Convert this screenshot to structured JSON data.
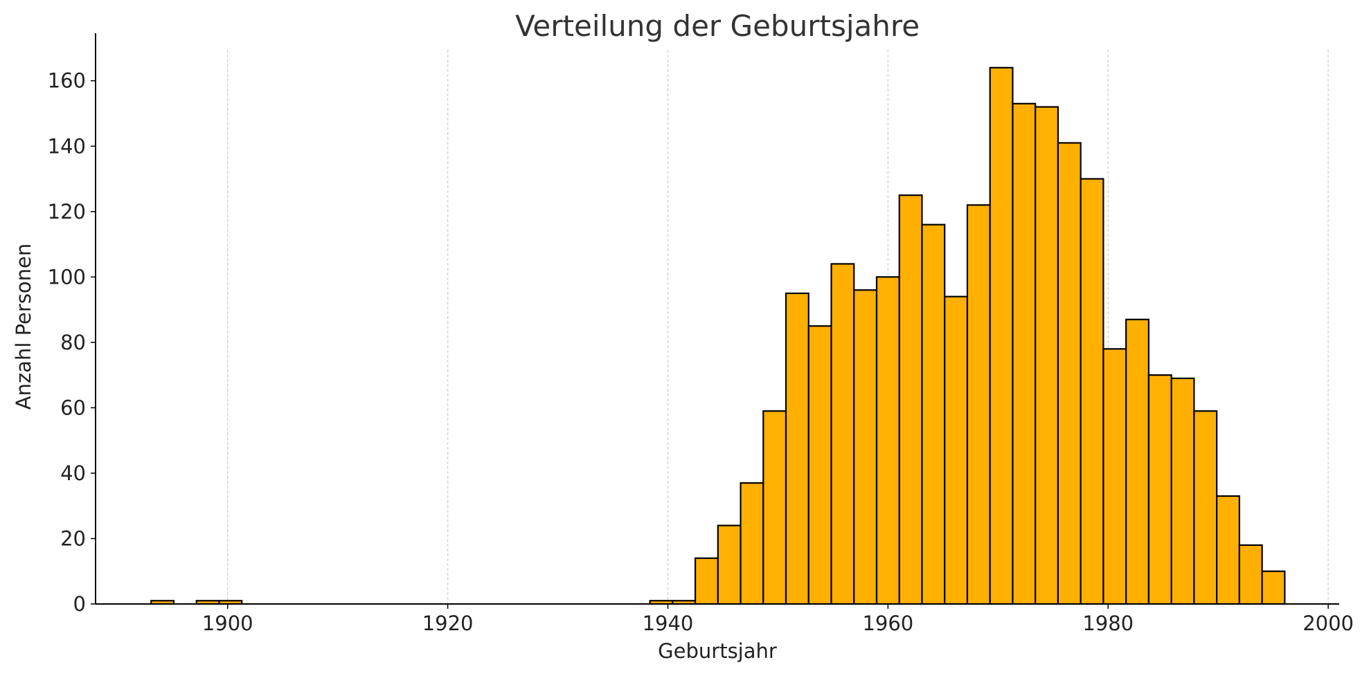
{
  "chart_data": {
    "type": "bar",
    "title": "Verteilung der Geburtsjahre",
    "xlabel": "Geburtsjahr",
    "ylabel": "Anzahl Personen",
    "xlim": [
      1888,
      2001
    ],
    "ylim": [
      0,
      172
    ],
    "xticks": [
      1900,
      1920,
      1940,
      1960,
      1980,
      2000
    ],
    "yticks": [
      0,
      20,
      40,
      60,
      80,
      100,
      120,
      140,
      160
    ],
    "grid": "vertical-dashed",
    "bar_color": "#FFB000",
    "edge_color": "#000000",
    "grid_color": "#CCCCCC",
    "bin_width": 2.06,
    "bins": [
      {
        "x0": 1893.05,
        "value": 1
      },
      {
        "x0": 1897.17,
        "value": 1
      },
      {
        "x0": 1899.23,
        "value": 1
      },
      {
        "x0": 1938.37,
        "value": 1
      },
      {
        "x0": 1940.43,
        "value": 1
      },
      {
        "x0": 1942.49,
        "value": 14
      },
      {
        "x0": 1944.55,
        "value": 24
      },
      {
        "x0": 1946.61,
        "value": 37
      },
      {
        "x0": 1948.67,
        "value": 59
      },
      {
        "x0": 1950.73,
        "value": 95
      },
      {
        "x0": 1952.79,
        "value": 85
      },
      {
        "x0": 1954.85,
        "value": 104
      },
      {
        "x0": 1956.91,
        "value": 96
      },
      {
        "x0": 1958.97,
        "value": 100
      },
      {
        "x0": 1961.03,
        "value": 125
      },
      {
        "x0": 1963.09,
        "value": 116
      },
      {
        "x0": 1965.15,
        "value": 94
      },
      {
        "x0": 1967.21,
        "value": 122
      },
      {
        "x0": 1969.27,
        "value": 164
      },
      {
        "x0": 1971.33,
        "value": 153
      },
      {
        "x0": 1973.39,
        "value": 152
      },
      {
        "x0": 1975.45,
        "value": 141
      },
      {
        "x0": 1977.51,
        "value": 130
      },
      {
        "x0": 1979.57,
        "value": 78
      },
      {
        "x0": 1981.63,
        "value": 87
      },
      {
        "x0": 1983.69,
        "value": 70
      },
      {
        "x0": 1985.75,
        "value": 69
      },
      {
        "x0": 1987.81,
        "value": 59
      },
      {
        "x0": 1989.87,
        "value": 33
      },
      {
        "x0": 1991.93,
        "value": 18
      },
      {
        "x0": 1993.99,
        "value": 10
      }
    ]
  }
}
